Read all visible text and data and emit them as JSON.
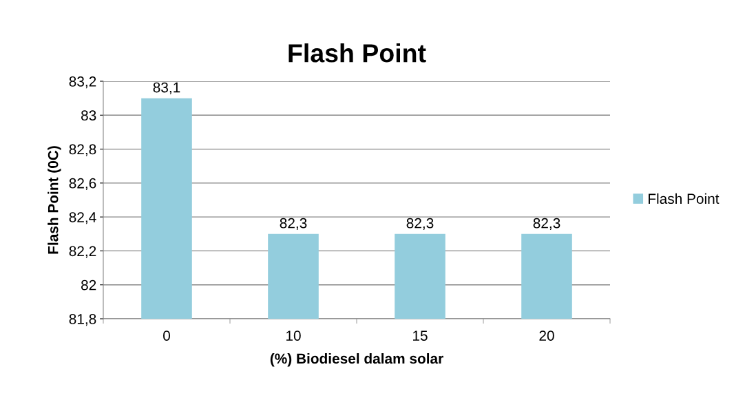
{
  "chart_data": {
    "type": "bar",
    "title": "Flash Point",
    "xlabel": "(%) Biodiesel dalam solar",
    "ylabel": "Flash Point (0C)",
    "categories": [
      "0",
      "10",
      "15",
      "20"
    ],
    "series": [
      {
        "name": "Flash Point",
        "color": "#93cddd",
        "values": [
          83.1,
          82.3,
          82.3,
          82.3
        ],
        "value_labels": [
          "83,1",
          "82,3",
          "82,3",
          "82,3"
        ]
      }
    ],
    "ylim": [
      81.8,
      83.2
    ],
    "yticks": [
      {
        "value": 81.8,
        "label": "81,8"
      },
      {
        "value": 82,
        "label": "82"
      },
      {
        "value": 82.2,
        "label": "82,2"
      },
      {
        "value": 82.4,
        "label": "82,4"
      },
      {
        "value": 82.6,
        "label": "82,6"
      },
      {
        "value": 82.8,
        "label": "82,8"
      },
      {
        "value": 83,
        "label": "83"
      },
      {
        "value": 83.2,
        "label": "83,2"
      }
    ],
    "grid": "y",
    "legend": "right"
  }
}
